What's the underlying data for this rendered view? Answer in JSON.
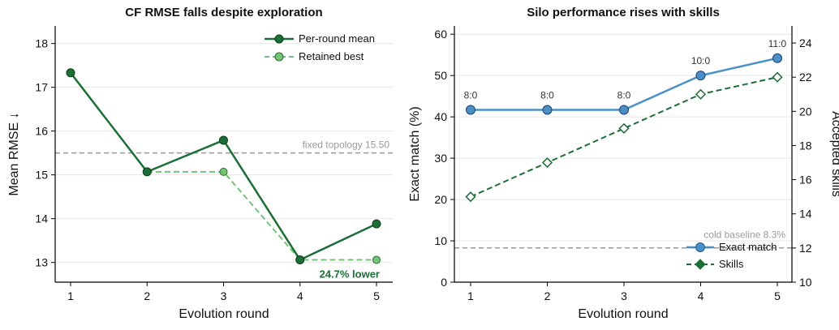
{
  "chart_data": [
    {
      "type": "line",
      "title": "CF RMSE falls despite exploration",
      "xlabel": "Evolution round",
      "ylabel": "Mean RMSE ↓",
      "x": [
        1,
        2,
        3,
        4,
        5
      ],
      "xticks": [
        "1",
        "2",
        "3",
        "4",
        "5"
      ],
      "ylim": [
        12.55,
        18.4
      ],
      "yticks": [
        "13",
        "14",
        "15",
        "16",
        "17",
        "18"
      ],
      "grid": "horizontal",
      "legend_position": "top-right",
      "series": [
        {
          "name": "Per-round mean",
          "values": [
            17.33,
            15.07,
            15.79,
            13.06,
            13.88
          ],
          "color": "#1b6e35",
          "style": "solid"
        },
        {
          "name": "Retained best",
          "values": [
            17.33,
            15.07,
            15.07,
            13.06,
            13.06
          ],
          "color": "#74c476",
          "style": "dashed"
        }
      ],
      "reference_line": {
        "label": "fixed topology 15.50",
        "value": 15.5,
        "color": "#999999"
      },
      "annotation": {
        "text": "24.7% lower",
        "color": "#1b6e35"
      }
    },
    {
      "type": "line",
      "title": "Silo performance rises with skills",
      "xlabel": "Evolution round",
      "ylabel": "Exact match (%)",
      "ylabel_right": "Accepted skills",
      "x": [
        1,
        2,
        3,
        4,
        5
      ],
      "xticks": [
        "1",
        "2",
        "3",
        "4",
        "5"
      ],
      "ylim": [
        0,
        62
      ],
      "yticks": [
        "0",
        "10",
        "20",
        "30",
        "40",
        "50",
        "60"
      ],
      "ylim_right": [
        10,
        25
      ],
      "yticks_right": [
        "10",
        "12",
        "14",
        "16",
        "18",
        "20",
        "22",
        "24"
      ],
      "grid": "horizontal",
      "legend_position": "lower-right",
      "series": [
        {
          "name": "Exact match",
          "axis": "left",
          "values": [
            41.7,
            41.7,
            41.7,
            50.0,
            54.2
          ],
          "color": "#4a90c4",
          "style": "solid",
          "point_labels": [
            "8:0",
            "8:0",
            "8:0",
            "10:0",
            "11:0"
          ]
        },
        {
          "name": "Skills",
          "axis": "right",
          "values": [
            15,
            17,
            19,
            21,
            22
          ],
          "color": "#1b6e35",
          "style": "dashed"
        }
      ],
      "reference_line": {
        "label": "cold baseline 8.3%",
        "value": 8.3,
        "color": "#999999"
      }
    }
  ]
}
